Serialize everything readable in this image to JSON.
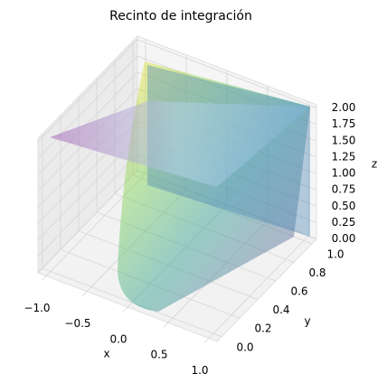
{
  "chart_data": {
    "type": "surface3d",
    "title": "Recinto de integración",
    "xlabel": "x",
    "ylabel": "y",
    "zlabel": "z",
    "xlim": [
      -1.1,
      1.1
    ],
    "ylim": [
      -0.05,
      1.05
    ],
    "zlim": [
      0,
      2.05
    ],
    "xticks": [
      {
        "value": -1,
        "label": "−1.0"
      },
      {
        "value": -0.5,
        "label": "−0.5"
      },
      {
        "value": 0,
        "label": "0.0"
      },
      0.5,
      {
        "value": 1,
        "label": "1.0"
      }
    ],
    "yticks": [
      {
        "value": 0,
        "label": "0.0"
      },
      0.2,
      0.4,
      0.6,
      0.8,
      {
        "value": 1,
        "label": "1.0"
      }
    ],
    "zticks": [
      {
        "value": 0,
        "label": "0.00"
      },
      0.25,
      {
        "value": 0.5,
        "label": "0.50"
      },
      0.75,
      {
        "value": 1,
        "label": "1.00"
      },
      1.25,
      {
        "value": 1.5,
        "label": "1.50"
      },
      1.75,
      {
        "value": 2,
        "label": "2.00"
      }
    ],
    "grid": true
  }
}
